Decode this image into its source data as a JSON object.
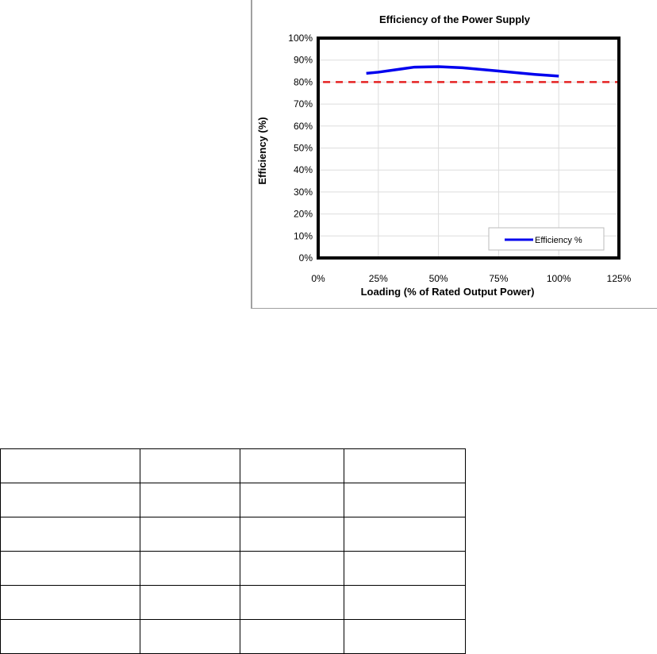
{
  "chart_data": {
    "type": "line",
    "title": "Efficiency of the Power Supply",
    "xlabel": "Loading (% of Rated Output Power)",
    "ylabel": "Efficiency (%)",
    "xlim": [
      0,
      125
    ],
    "ylim": [
      0,
      100
    ],
    "xticks": [
      "0%",
      "25%",
      "50%",
      "75%",
      "100%",
      "125%"
    ],
    "yticks": [
      "0%",
      "10%",
      "20%",
      "30%",
      "40%",
      "50%",
      "60%",
      "70%",
      "80%",
      "90%",
      "100%"
    ],
    "grid": true,
    "legend_position": "bottom-right",
    "series": [
      {
        "name": "Efficiency %",
        "color": "#0000ee",
        "x": [
          20,
          25,
          40,
          50,
          60,
          75,
          90,
          100
        ],
        "y": [
          84,
          84.5,
          86.8,
          87,
          86.5,
          85,
          83.5,
          82.7
        ]
      }
    ],
    "reference_line": {
      "y": 80,
      "color": "#e52222",
      "style": "dashed",
      "x": [
        2,
        125
      ]
    }
  }
}
